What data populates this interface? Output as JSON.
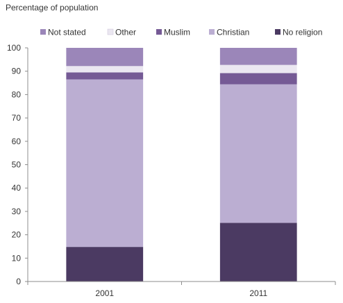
{
  "chart_data": {
    "type": "bar",
    "stacked": true,
    "ylabel": "Percentage of population",
    "categories": [
      "2001",
      "2011"
    ],
    "ylim": [
      0,
      100
    ],
    "yticks": [
      0,
      10,
      20,
      30,
      40,
      50,
      60,
      70,
      80,
      90,
      100
    ],
    "grid": false,
    "legend_placement": "top",
    "series": [
      {
        "name": "No religion",
        "color": "#4b3a62",
        "values": [
          14.8,
          25.1
        ]
      },
      {
        "name": "Christian",
        "color": "#bbaed2",
        "values": [
          71.7,
          59.3
        ]
      },
      {
        "name": "Muslim",
        "color": "#755a95",
        "values": [
          3.0,
          4.8
        ]
      },
      {
        "name": "Other",
        "color": "#ebe7f1",
        "values": [
          2.7,
          3.5
        ]
      },
      {
        "name": "Not stated",
        "color": "#9b86b9",
        "values": [
          7.8,
          7.3
        ]
      }
    ],
    "legend_order": [
      "Not stated",
      "Other",
      "Muslim",
      "Christian",
      "No religion"
    ]
  }
}
